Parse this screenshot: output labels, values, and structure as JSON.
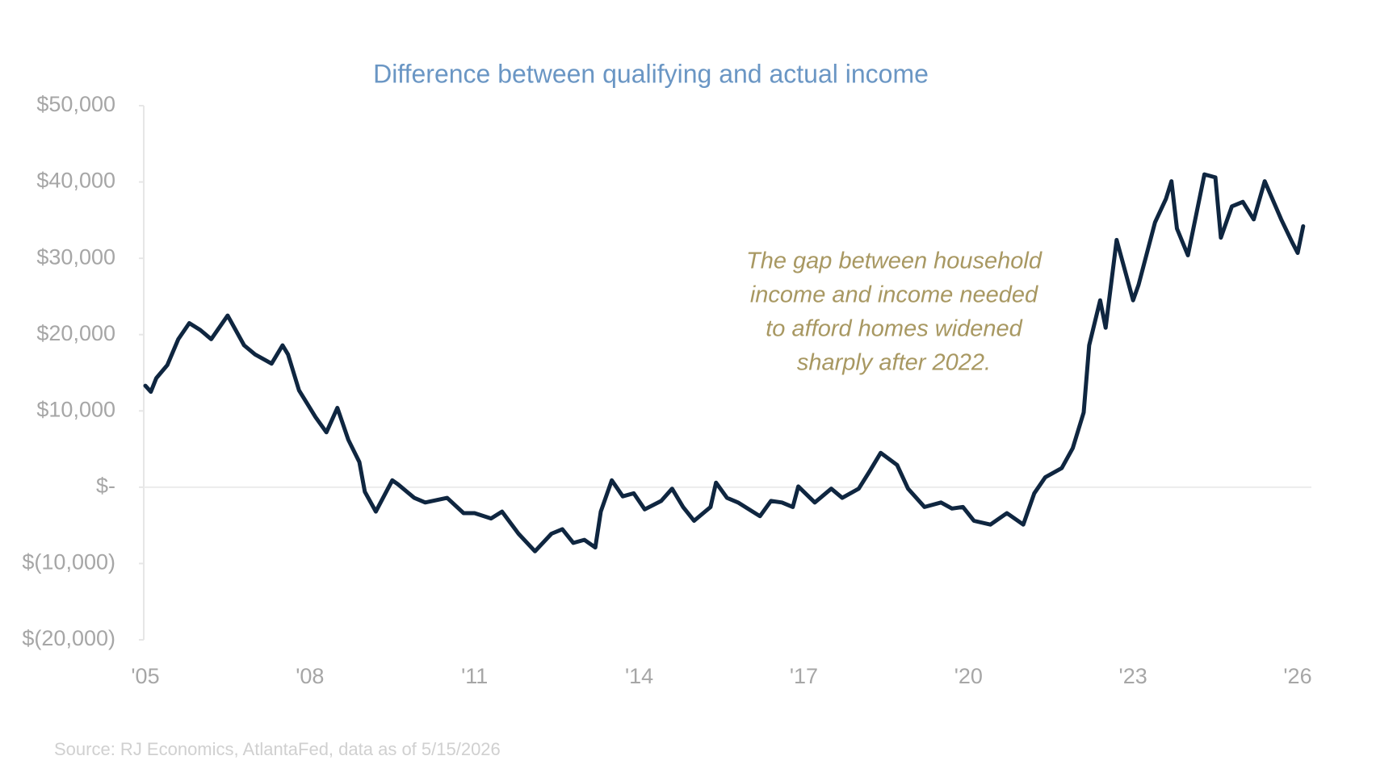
{
  "chart_data": {
    "type": "line",
    "title": "Difference between qualifying and actual income",
    "annotation": [
      "The gap between household",
      "income and income needed",
      "to afford homes widened",
      "sharply after 2022."
    ],
    "source": "Source: RJ Economics, AtlantaFed, data as of 5/15/2026",
    "color": "#0f2640",
    "x": [
      2005.0,
      2005.1,
      2005.2,
      2005.4,
      2005.6,
      2005.8,
      2006.0,
      2006.2,
      2006.5,
      2006.8,
      2007.0,
      2007.3,
      2007.5,
      2007.6,
      2007.8,
      2008.1,
      2008.3,
      2008.5,
      2008.7,
      2008.9,
      2009.0,
      2009.2,
      2009.5,
      2009.6,
      2009.9,
      2010.1,
      2010.5,
      2010.8,
      2011.0,
      2011.3,
      2011.5,
      2011.8,
      2012.1,
      2012.4,
      2012.6,
      2012.8,
      2013.0,
      2013.2,
      2013.3,
      2013.5,
      2013.7,
      2013.9,
      2014.1,
      2014.4,
      2014.6,
      2014.8,
      2015.0,
      2015.3,
      2015.4,
      2015.6,
      2015.8,
      2016.2,
      2016.4,
      2016.6,
      2016.8,
      2016.9,
      2017.2,
      2017.5,
      2017.7,
      2018.0,
      2018.2,
      2018.4,
      2018.7,
      2018.9,
      2019.2,
      2019.5,
      2019.7,
      2019.9,
      2020.1,
      2020.4,
      2020.7,
      2021.0,
      2021.2,
      2021.4,
      2021.7,
      2021.9,
      2022.1,
      2022.2,
      2022.4,
      2022.5,
      2022.7,
      2023.0,
      2023.1,
      2023.4,
      2023.6,
      2023.7,
      2023.8,
      2024.0,
      2024.3,
      2024.5,
      2024.6,
      2024.8,
      2025.0,
      2025.2,
      2025.4,
      2025.7,
      2025.9,
      2026.0,
      2026.1
    ],
    "values": [
      13300,
      12500,
      14300,
      16000,
      19400,
      21500,
      20600,
      19400,
      22500,
      18600,
      17400,
      16200,
      18600,
      17400,
      12700,
      9200,
      7200,
      10400,
      6200,
      3300,
      -600,
      -3200,
      900,
      400,
      -1400,
      -2000,
      -1400,
      -3400,
      -3400,
      -4100,
      -3200,
      -6100,
      -8400,
      -6100,
      -5500,
      -7300,
      -6900,
      -7900,
      -3200,
      900,
      -1200,
      -800,
      -2900,
      -1800,
      -200,
      -2600,
      -4400,
      -2600,
      600,
      -1400,
      -2000,
      -3800,
      -1800,
      -2000,
      -2600,
      100,
      -2000,
      -200,
      -1400,
      -200,
      2100,
      4500,
      2900,
      -200,
      -2600,
      -2000,
      -2800,
      -2600,
      -4400,
      -4900,
      -3400,
      -4900,
      -800,
      1300,
      2500,
      5100,
      9800,
      18600,
      24500,
      20900,
      32400,
      24500,
      26500,
      34700,
      37800,
      40100,
      33900,
      30400,
      41000,
      40600,
      32700,
      36800,
      37400,
      35100,
      40100,
      35100,
      32100,
      30700,
      34200
    ],
    "xlim": [
      2005,
      2026.25
    ],
    "xticks": [
      {
        "value": 2005,
        "label": "'05"
      },
      {
        "value": 2008,
        "label": "'08"
      },
      {
        "value": 2011,
        "label": "'11"
      },
      {
        "value": 2014,
        "label": "'14"
      },
      {
        "value": 2017,
        "label": "'17"
      },
      {
        "value": 2020,
        "label": "'20"
      },
      {
        "value": 2023,
        "label": "'23"
      },
      {
        "value": 2026,
        "label": "'26"
      }
    ],
    "ylim": [
      -20000,
      50000
    ],
    "yticks": [
      {
        "value": 50000,
        "label": "$50,000"
      },
      {
        "value": 40000,
        "label": "$40,000"
      },
      {
        "value": 30000,
        "label": "$30,000"
      },
      {
        "value": 20000,
        "label": "$20,000"
      },
      {
        "value": 10000,
        "label": "$10,000"
      },
      {
        "value": 0,
        "label": "$-"
      },
      {
        "value": -10000,
        "label": "$(10,000)"
      },
      {
        "value": -20000,
        "label": "$(20,000)"
      }
    ],
    "grid": false
  }
}
